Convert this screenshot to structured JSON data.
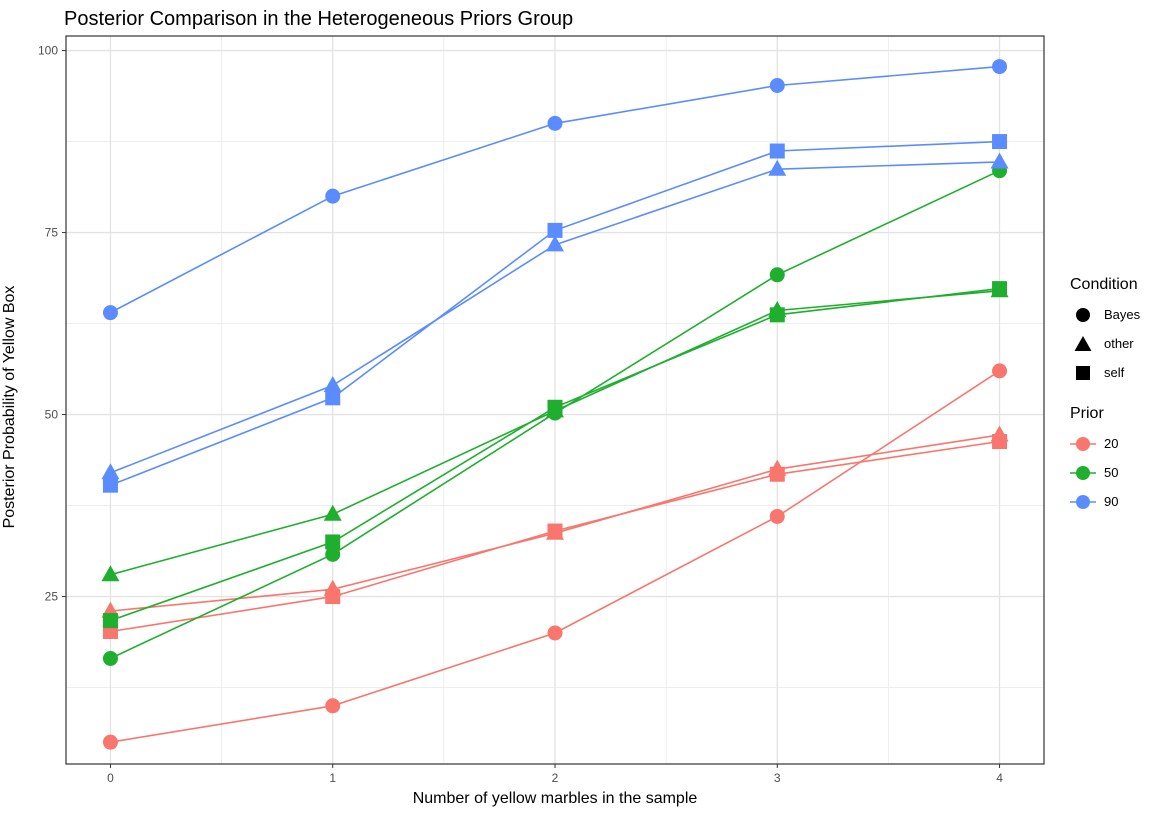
{
  "chart_data": {
    "type": "line",
    "title": "Posterior Comparison in the Heterogeneous Priors Group",
    "xlabel": "Number of yellow marbles in the sample",
    "ylabel": "Posterior Probability of Yellow Box",
    "x": [
      0,
      1,
      2,
      3,
      4
    ],
    "xlim": [
      -0.2,
      4.2
    ],
    "ylim": [
      2,
      102
    ],
    "x_ticks": [
      "0",
      "1",
      "2",
      "3",
      "4"
    ],
    "y_ticks": [
      25,
      50,
      75,
      100
    ],
    "y_tick_labels": [
      "25",
      "50",
      "75",
      "100"
    ],
    "grid": true,
    "legend_position": "right",
    "condition_legend": {
      "title": "Condition",
      "items": [
        {
          "label": "Bayes",
          "shape": "circle"
        },
        {
          "label": "other",
          "shape": "triangle"
        },
        {
          "label": "self",
          "shape": "square"
        }
      ]
    },
    "prior_legend": {
      "title": "Prior",
      "items": [
        {
          "label": "20",
          "color": "#f8766d"
        },
        {
          "label": "50",
          "color": "#1fae2e"
        },
        {
          "label": "90",
          "color": "#5b8cff"
        }
      ]
    },
    "series": [
      {
        "prior": "20",
        "condition": "Bayes",
        "color": "#f8766d",
        "shape": "circle",
        "values": [
          5,
          10,
          20,
          36,
          56
        ]
      },
      {
        "prior": "20",
        "condition": "other",
        "color": "#f8766d",
        "shape": "triangle",
        "values": [
          23,
          26,
          33.7,
          42.5,
          47.2
        ]
      },
      {
        "prior": "20",
        "condition": "self",
        "color": "#f8766d",
        "shape": "square",
        "values": [
          20.2,
          25,
          34,
          41.8,
          46.3
        ]
      },
      {
        "prior": "50",
        "condition": "Bayes",
        "color": "#1fae2e",
        "shape": "circle",
        "values": [
          16.5,
          30.8,
          50.2,
          69.2,
          83.5
        ]
      },
      {
        "prior": "50",
        "condition": "other",
        "color": "#1fae2e",
        "shape": "triangle",
        "values": [
          28,
          36.3,
          50.5,
          64.3,
          67
        ]
      },
      {
        "prior": "50",
        "condition": "self",
        "color": "#1fae2e",
        "shape": "square",
        "values": [
          21.7,
          32.5,
          51,
          63.7,
          67.3
        ]
      },
      {
        "prior": "90",
        "condition": "Bayes",
        "color": "#5b8cff",
        "shape": "circle",
        "values": [
          64,
          80,
          90,
          95.2,
          97.8
        ]
      },
      {
        "prior": "90",
        "condition": "other",
        "color": "#5b8cff",
        "shape": "triangle",
        "values": [
          42,
          54,
          73.3,
          83.7,
          84.7
        ]
      },
      {
        "prior": "90",
        "condition": "self",
        "color": "#5b8cff",
        "shape": "square",
        "values": [
          40.3,
          52.3,
          75.3,
          86.2,
          87.5
        ]
      }
    ]
  }
}
